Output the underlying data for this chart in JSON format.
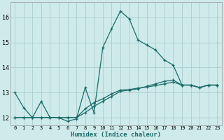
{
  "xlabel": "Humidex (Indice chaleur)",
  "xlim": [
    -0.5,
    23.5
  ],
  "ylim": [
    11.7,
    16.6
  ],
  "yticks": [
    12,
    13,
    14,
    15,
    16
  ],
  "xticks": [
    0,
    1,
    2,
    3,
    4,
    5,
    6,
    7,
    8,
    9,
    10,
    11,
    12,
    13,
    14,
    15,
    16,
    17,
    18,
    19,
    20,
    21,
    22,
    23
  ],
  "bg_color": "#ceeaea",
  "grid_color": "#aacece",
  "line_color": "#1a6b6b",
  "line1_x": [
    0,
    1,
    2,
    3,
    4,
    5,
    6,
    7,
    8,
    9,
    10,
    11,
    12,
    13,
    14,
    15,
    16,
    17,
    18,
    19,
    20,
    21,
    22,
    23
  ],
  "line1_y": [
    13.0,
    12.4,
    12.0,
    12.65,
    12.0,
    12.0,
    11.85,
    11.95,
    13.2,
    12.2,
    14.8,
    15.55,
    16.25,
    15.95,
    15.1,
    14.9,
    14.7,
    14.3,
    14.1,
    13.3,
    13.3,
    13.2,
    13.3,
    13.3
  ],
  "line2_x": [
    0,
    1,
    2,
    3,
    4,
    5,
    6,
    7,
    8,
    9,
    10,
    11,
    12,
    13,
    14,
    15,
    16,
    17,
    18,
    19,
    20,
    21,
    22,
    23
  ],
  "line2_y": [
    12.0,
    12.0,
    12.0,
    12.0,
    12.0,
    12.0,
    12.0,
    12.0,
    12.2,
    12.45,
    12.65,
    12.85,
    13.05,
    13.1,
    13.15,
    13.25,
    13.35,
    13.45,
    13.5,
    13.3,
    13.3,
    13.2,
    13.3,
    13.3
  ],
  "line3_x": [
    0,
    1,
    2,
    3,
    4,
    5,
    6,
    7,
    8,
    9,
    10,
    11,
    12,
    13,
    14,
    15,
    16,
    17,
    18,
    19,
    20,
    21,
    22,
    23
  ],
  "line3_y": [
    12.0,
    12.0,
    12.0,
    12.0,
    12.0,
    12.0,
    12.0,
    12.0,
    12.35,
    12.6,
    12.75,
    12.95,
    13.1,
    13.12,
    13.18,
    13.22,
    13.28,
    13.35,
    13.42,
    13.3,
    13.3,
    13.2,
    13.3,
    13.3
  ]
}
